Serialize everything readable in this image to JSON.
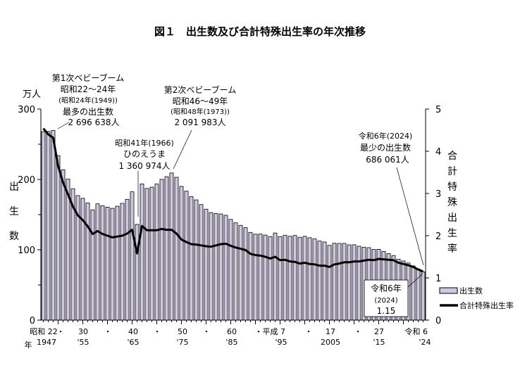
{
  "chart_data": {
    "type": "bar+line",
    "title": "図１　出生数及び合計特殊出生率の年次推移",
    "left_unit": "万人",
    "left_axis_label": "出生数",
    "right_axis_label": "合計特殊出生率",
    "left_ylim": [
      0,
      300
    ],
    "left_ticks": [
      "0",
      "100",
      "200",
      "300"
    ],
    "right_ylim": [
      0,
      5
    ],
    "right_ticks": [
      "0",
      "1",
      "2",
      "3",
      "4",
      "5"
    ],
    "x_tick_labels_top": [
      "昭和 22",
      "・",
      "30",
      "・",
      "40",
      "・",
      "50",
      "・",
      "60",
      "・平成 7",
      "・",
      "17",
      "・",
      "27",
      "令和 6"
    ],
    "x_tick_labels_bottom": [
      "1947",
      "'55",
      "'65",
      "'75",
      "'85",
      "'95",
      "2005",
      "'15",
      "'24"
    ],
    "x_axis_unit": "年",
    "legend": {
      "bars": "出生数",
      "line": "合計特殊出生率",
      "placement": "bottom-right"
    },
    "years": [
      1947,
      1948,
      1949,
      1950,
      1951,
      1952,
      1953,
      1954,
      1955,
      1956,
      1957,
      1958,
      1959,
      1960,
      1961,
      1962,
      1963,
      1964,
      1965,
      1966,
      1967,
      1968,
      1969,
      1970,
      1971,
      1972,
      1973,
      1974,
      1975,
      1976,
      1977,
      1978,
      1979,
      1980,
      1981,
      1982,
      1983,
      1984,
      1985,
      1986,
      1987,
      1988,
      1989,
      1990,
      1991,
      1992,
      1993,
      1994,
      1995,
      1996,
      1997,
      1998,
      1999,
      2000,
      2001,
      2002,
      2003,
      2004,
      2005,
      2006,
      2007,
      2008,
      2009,
      2010,
      2011,
      2012,
      2013,
      2014,
      2015,
      2016,
      2017,
      2018,
      2019,
      2020,
      2021,
      2022,
      2023,
      2024
    ],
    "series": [
      {
        "name": "出生数",
        "type": "bar",
        "values": [
          267.9,
          268.2,
          269.7,
          233.8,
          213.8,
          200.5,
          186.8,
          177.0,
          173.1,
          166.5,
          156.7,
          165.3,
          162.6,
          160.6,
          158.9,
          161.9,
          166.0,
          171.7,
          182.4,
          136.1,
          193.6,
          187.2,
          189.0,
          193.4,
          200.1,
          203.9,
          209.2,
          203.0,
          190.1,
          183.3,
          175.5,
          170.9,
          164.3,
          157.7,
          152.9,
          151.5,
          150.9,
          149.0,
          143.2,
          138.3,
          134.7,
          131.4,
          124.7,
          122.2,
          122.3,
          120.9,
          118.8,
          123.8,
          118.7,
          120.7,
          119.2,
          120.3,
          117.8,
          119.1,
          117.1,
          115.4,
          112.4,
          111.1,
          106.3,
          109.3,
          109.0,
          109.1,
          107.0,
          107.1,
          105.1,
          103.7,
          103.0,
          100.4,
          100.6,
          97.7,
          94.6,
          91.8,
          86.5,
          84.1,
          81.2,
          77.1,
          72.7,
          68.6
        ]
      },
      {
        "name": "合計特殊出生率",
        "type": "line",
        "values": [
          4.54,
          4.4,
          4.32,
          3.65,
          3.26,
          2.98,
          2.69,
          2.48,
          2.37,
          2.22,
          2.04,
          2.11,
          2.04,
          2.0,
          1.96,
          1.98,
          2.0,
          2.05,
          2.14,
          1.58,
          2.23,
          2.13,
          2.13,
          2.13,
          2.16,
          2.14,
          2.14,
          2.05,
          1.91,
          1.85,
          1.8,
          1.79,
          1.77,
          1.75,
          1.74,
          1.77,
          1.8,
          1.81,
          1.76,
          1.72,
          1.69,
          1.66,
          1.57,
          1.54,
          1.53,
          1.5,
          1.46,
          1.5,
          1.42,
          1.43,
          1.39,
          1.38,
          1.34,
          1.36,
          1.33,
          1.32,
          1.29,
          1.29,
          1.26,
          1.32,
          1.34,
          1.37,
          1.37,
          1.39,
          1.39,
          1.41,
          1.43,
          1.42,
          1.45,
          1.44,
          1.43,
          1.42,
          1.36,
          1.33,
          1.3,
          1.26,
          1.2,
          1.15
        ]
      }
    ],
    "annotations": {
      "boom1": [
        "第1次ベビーブーム",
        "昭和22～24年",
        "(昭和24年(1949))",
        "最多の出生数",
        "2 696 638人"
      ],
      "boom2": [
        "第2次ベビーブーム",
        "昭和46～49年",
        "(昭和48年(1973))",
        "2 091 983人"
      ],
      "hinoe": [
        "昭和41年(1966)",
        "ひのえうま",
        "1 360 974人"
      ],
      "min": [
        "令和6年(2024)",
        "最少の出生数",
        "686 061人"
      ],
      "tfr_box": [
        "令和6年",
        "(2024)",
        "1.15"
      ]
    }
  }
}
